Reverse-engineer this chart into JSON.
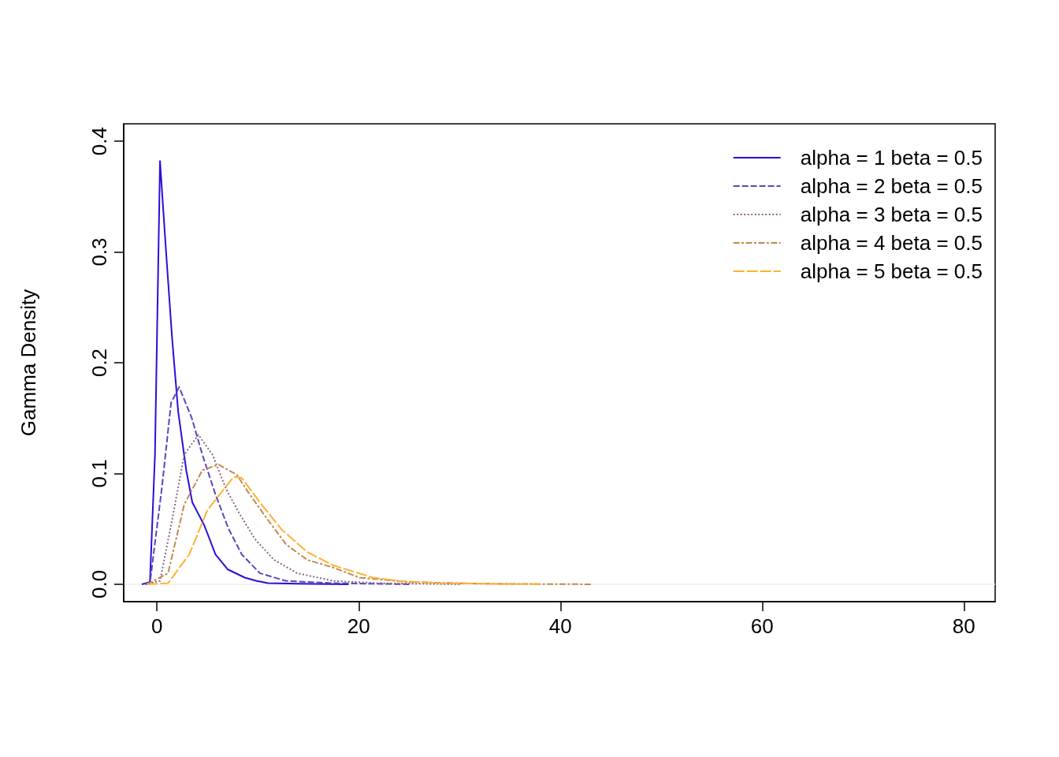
{
  "chart_data": {
    "type": "line",
    "ylabel": "Gamma Density",
    "xlim": [
      -3.3,
      83.1
    ],
    "xticks": [
      0,
      20,
      40,
      60,
      80
    ],
    "ylim": [
      -0.0157,
      0.4157
    ],
    "yticks": [
      {
        "value": 0,
        "label": "0.0"
      },
      {
        "value": 0.1,
        "label": "0.1"
      },
      {
        "value": 0.2,
        "label": "0.2"
      },
      {
        "value": 0.3,
        "label": "0.3"
      },
      {
        "value": 0.4,
        "label": "0.4"
      }
    ],
    "grid": false,
    "legend": "top right",
    "marker": "none",
    "ref_lines": [
      {
        "axis": "y",
        "value": 0,
        "color": "#eeeeee"
      }
    ],
    "series": [
      {
        "name": "alpha = 1 beta = 0.5",
        "color": "#2a0fd8",
        "line_style": "solid",
        "x": [
          -1.5,
          -0.7,
          -0.2,
          0.3,
          0.9,
          1.5,
          2.1,
          2.9,
          3.5,
          4.7,
          5.8,
          7.0,
          8.7,
          9.9,
          11,
          14,
          19
        ],
        "values": [
          0,
          0.002,
          0.117,
          0.382,
          0.3,
          0.222,
          0.156,
          0.103,
          0.074,
          0.053,
          0.027,
          0.0135,
          0.006,
          0.003,
          0.001,
          0.0005,
          0
        ]
      },
      {
        "name": "alpha = 2 beta = 0.5",
        "color": "#5a45c0",
        "line_style": "dashed",
        "x": [
          -1.2,
          -0.7,
          0.47,
          1.4,
          2.2,
          3.45,
          4.5,
          5.8,
          7.1,
          8.4,
          10.2,
          12.8,
          17.5,
          25
        ],
        "values": [
          0,
          0.001,
          0.086,
          0.164,
          0.178,
          0.15,
          0.117,
          0.081,
          0.05,
          0.027,
          0.01,
          0.003,
          0.001,
          0
        ]
      },
      {
        "name": "alpha = 3 beta = 0.5",
        "color": "#8c6482",
        "line_style": "dotted",
        "x": [
          -1.2,
          0.3,
          1.6,
          2.7,
          4.1,
          5.5,
          6.85,
          8.1,
          9.7,
          11.6,
          13.9,
          17.5,
          22,
          30
        ],
        "values": [
          0,
          0.003,
          0.063,
          0.117,
          0.135,
          0.117,
          0.086,
          0.065,
          0.041,
          0.022,
          0.01,
          0.003,
          0.001,
          0
        ]
      },
      {
        "name": "alpha = 4 beta = 0.5",
        "color": "#c08a50",
        "line_style": "dashdot",
        "x": [
          -1.0,
          1.1,
          2.7,
          4.5,
          6.1,
          7.9,
          9.2,
          11,
          12.8,
          14.9,
          17.5,
          20.1,
          25,
          32,
          43
        ],
        "values": [
          0,
          0.01,
          0.072,
          0.103,
          0.108,
          0.099,
          0.081,
          0.058,
          0.036,
          0.022,
          0.015,
          0.006,
          0.002,
          0.0005,
          0
        ]
      },
      {
        "name": "alpha = 5 beta = 0.5",
        "color": "#ffb030",
        "line_style": "longdash",
        "x": [
          -1.0,
          1.1,
          3.2,
          5,
          7.6,
          8.4,
          10.2,
          12.3,
          14.9,
          17.5,
          21.4,
          24,
          28,
          38
        ],
        "values": [
          0,
          0.001,
          0.027,
          0.067,
          0.097,
          0.096,
          0.074,
          0.05,
          0.029,
          0.017,
          0.006,
          0.003,
          0.001,
          0
        ]
      }
    ]
  }
}
